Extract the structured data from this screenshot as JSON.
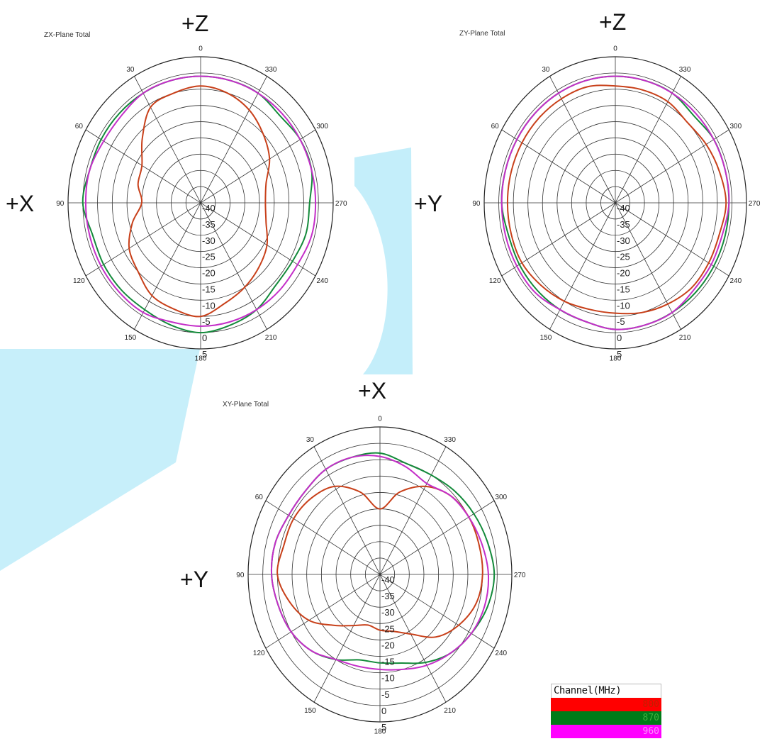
{
  "legend": {
    "title": "Channel(MHz)",
    "channels": [
      {
        "label": "800",
        "color": "#ff0000",
        "text_color": "#c02000",
        "trace_color": "#c8401a"
      },
      {
        "label": "870",
        "color": "#007b18",
        "text_color": "#40b040",
        "trace_color": "#138a3a"
      },
      {
        "label": "960",
        "color": "#ff00ff",
        "text_color": "#ff90ff",
        "trace_color": "#c42ec8"
      }
    ]
  },
  "watermark_color": "#c4eefa",
  "chart_data": [
    {
      "type": "polar",
      "title": "ZX-Plane Total",
      "direction_labels": {
        "top": "+Z",
        "left": "+X"
      },
      "angle_ticks": [
        "0",
        "30",
        "60",
        "90",
        "120",
        "150",
        "180",
        "210",
        "240",
        "270",
        "300",
        "330"
      ],
      "radial_ticks": [
        "-40",
        "-35",
        "-30",
        "-25",
        "-20",
        "-15",
        "-10",
        "-5",
        "0",
        "5"
      ],
      "r_range": [
        -40,
        5
      ],
      "angles_deg": [
        0,
        15,
        30,
        45,
        60,
        75,
        90,
        105,
        120,
        135,
        150,
        165,
        180,
        195,
        210,
        225,
        240,
        255,
        270,
        285,
        300,
        315,
        330,
        345
      ],
      "series": [
        {
          "name": "800",
          "values": [
            -4,
            -5,
            -6,
            -12,
            -17,
            -18,
            -20,
            -16,
            -12,
            -10,
            -7,
            -6,
            -5,
            -8,
            -10,
            -12,
            -14,
            -17,
            -18,
            -17,
            -13,
            -10,
            -7,
            -5
          ]
        },
        {
          "name": "870",
          "values": [
            -1,
            -1,
            -1,
            -1,
            -1,
            -1,
            0,
            -2,
            -2,
            -2,
            -2,
            -1,
            0,
            -1,
            -2,
            -4,
            -4,
            -3,
            -3,
            -1,
            -1,
            -2,
            -1,
            -1
          ]
        },
        {
          "name": "960",
          "values": [
            -1,
            -1,
            -1,
            -2,
            -2,
            -1,
            -1,
            -1,
            -1,
            -1,
            -1,
            -2,
            -2,
            -2,
            -2,
            -2,
            -2,
            -1,
            -1,
            -1,
            -1,
            -1,
            -1,
            -1
          ]
        }
      ]
    },
    {
      "type": "polar",
      "title": "ZY-Plane Total",
      "direction_labels": {
        "top": "+Z",
        "left": "+Y"
      },
      "angle_ticks": [
        "0",
        "30",
        "60",
        "90",
        "120",
        "150",
        "180",
        "210",
        "240",
        "270",
        "300",
        "330"
      ],
      "radial_ticks": [
        "-40",
        "-35",
        "-30",
        "-25",
        "-20",
        "-15",
        "-10",
        "-5",
        "0",
        "5"
      ],
      "r_range": [
        -40,
        5
      ],
      "angles_deg": [
        0,
        15,
        30,
        45,
        60,
        75,
        90,
        105,
        120,
        135,
        150,
        165,
        180,
        195,
        210,
        225,
        240,
        255,
        270,
        285,
        300,
        315,
        330,
        345
      ],
      "series": [
        {
          "name": "800",
          "values": [
            -4,
            -3,
            -3,
            -3,
            -3,
            -3,
            -3,
            -3,
            -3,
            -4,
            -5,
            -6,
            -6,
            -5,
            -4,
            -3,
            -3,
            -3,
            -2,
            -3,
            -4,
            -5,
            -4,
            -4
          ]
        },
        {
          "name": "870",
          "values": [
            -1,
            -1,
            -1,
            -1,
            -1,
            -1,
            -1,
            -2,
            -2,
            -2,
            -2,
            -2,
            -1,
            -1,
            -1,
            -1,
            -1,
            -1,
            -1,
            -1,
            -1,
            -2,
            -1,
            -1
          ]
        },
        {
          "name": "960",
          "values": [
            -1,
            -1,
            -1,
            -1,
            -1,
            -1,
            -1,
            -1,
            -1,
            -1,
            -2,
            -2,
            -1,
            -1,
            -1,
            -2,
            -2,
            -2,
            -1,
            -1,
            -1,
            -1,
            -1,
            -1
          ]
        }
      ]
    },
    {
      "type": "polar",
      "title": "XY-Plane Total",
      "direction_labels": {
        "top": "+X",
        "left": "+Y"
      },
      "angle_ticks": [
        "0",
        "30",
        "60",
        "90",
        "120",
        "150",
        "180",
        "210",
        "240",
        "270",
        "300",
        "330"
      ],
      "radial_ticks": [
        "-40",
        "-35",
        "-30",
        "-25",
        "-20",
        "-15",
        "-10",
        "-5",
        "0",
        "5"
      ],
      "r_range": [
        -40,
        5
      ],
      "angles_deg": [
        0,
        15,
        30,
        45,
        60,
        75,
        90,
        105,
        120,
        135,
        150,
        165,
        180,
        195,
        210,
        225,
        240,
        255,
        270,
        285,
        300,
        315,
        330,
        345
      ],
      "series": [
        {
          "name": "800",
          "values": [
            -20,
            -14,
            -9,
            -7,
            -6,
            -6,
            -5,
            -8,
            -12,
            -18,
            -22,
            -24,
            -23,
            -22,
            -19,
            -13,
            -9,
            -6,
            -5,
            -5,
            -5,
            -6,
            -9,
            -14
          ]
        },
        {
          "name": "870",
          "values": [
            -3,
            -3,
            -3,
            -4,
            -4,
            -3,
            -3,
            -4,
            -5,
            -7,
            -10,
            -13,
            -13,
            -12,
            -9,
            -6,
            -4,
            -2,
            -1,
            -2,
            -3,
            -4,
            -5,
            -5
          ]
        },
        {
          "name": "960",
          "values": [
            -4,
            -3,
            -3,
            -4,
            -4,
            -3,
            -3,
            -4,
            -5,
            -7,
            -10,
            -11,
            -11,
            -10,
            -8,
            -6,
            -4,
            -3,
            -3,
            -4,
            -5,
            -6,
            -8,
            -6
          ]
        }
      ]
    }
  ]
}
